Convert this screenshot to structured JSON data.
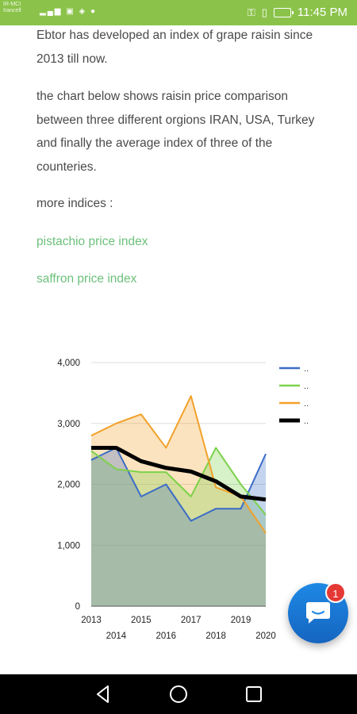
{
  "status_bar": {
    "carrier_line1": "IR-MCI",
    "carrier_line2": "Irancell",
    "time": "11:45 PM",
    "icons": [
      "signal-icon",
      "wifi-icon",
      "key-icon",
      "mute-icon",
      "battery-icon"
    ]
  },
  "article": {
    "intro": "Ebtor has developed an index of grape raisin since 2013 till now.",
    "description": "the chart below shows raisin price comparison between three different orgions IRAN, USA, Turkey and finally the average index of three of the counteries.",
    "more_label": "more indices :",
    "links": [
      {
        "label": "pistachio price index"
      },
      {
        "label": "saffron price index"
      }
    ],
    "link_color": "#6cc07b"
  },
  "chart_data": {
    "type": "area",
    "categories": [
      "2013",
      "2014",
      "2015",
      "2016",
      "2017",
      "2018",
      "2019",
      "2020"
    ],
    "ylim": [
      0,
      4000
    ],
    "yticks": [
      "0",
      "1,000",
      "2,000",
      "3,000",
      "4,000"
    ],
    "grid": true,
    "legend_position": "right",
    "series": [
      {
        "name": "..",
        "color": "#3b6cc7",
        "values": [
          2400,
          2600,
          1800,
          2000,
          1400,
          1600,
          1600,
          2500
        ]
      },
      {
        "name": "..",
        "color": "#7cd24a",
        "values": [
          2550,
          2250,
          2200,
          2200,
          1800,
          2600,
          2000,
          1500
        ]
      },
      {
        "name": "..",
        "color": "#f2a12a",
        "values": [
          2800,
          3000,
          3150,
          2600,
          3450,
          1950,
          1800,
          1200
        ]
      },
      {
        "name": "..",
        "color": "#000000",
        "values": [
          2600,
          2600,
          2380,
          2270,
          2210,
          2050,
          1800,
          1750
        ]
      }
    ]
  },
  "fab": {
    "badge_count": "1",
    "color": "#1e88e5"
  },
  "nav_bar": {
    "buttons": [
      "back-icon",
      "home-icon",
      "recent-apps-icon"
    ]
  }
}
